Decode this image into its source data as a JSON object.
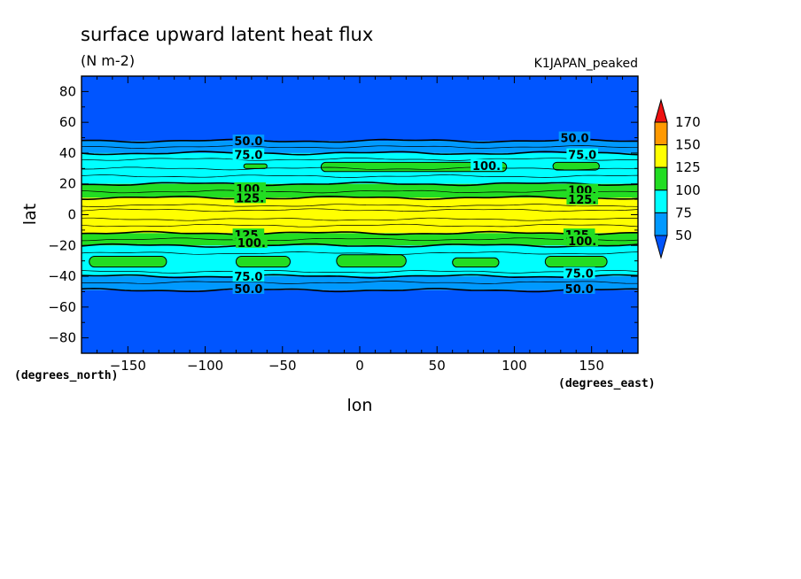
{
  "chart_data": {
    "type": "heatmap",
    "title": "surface upward latent heat flux",
    "units": "(N m-2)",
    "model": "K1JAPAN_peaked",
    "xlabel": "lon",
    "ylabel": "lat",
    "x_unit_label": "(degrees_east)",
    "y_unit_label": "(degrees_north)",
    "xlim": [
      -180,
      180
    ],
    "ylim": [
      -90,
      90
    ],
    "x_ticks": [
      -150,
      -100,
      -50,
      0,
      50,
      100,
      150
    ],
    "y_ticks": [
      80,
      60,
      40,
      20,
      0,
      -20,
      -40,
      -60,
      -80
    ],
    "levels": [
      50,
      75,
      100,
      125,
      150,
      170
    ],
    "colorbar": {
      "labels": [
        "170",
        "150",
        "125",
        "100",
        "75",
        "50"
      ],
      "colors": {
        "below_50": "#0055ff",
        "50_75": "#0099ff",
        "75_100": "#00ffff",
        "100_125": "#22dd22",
        "125_150": "#ffff00",
        "150_170": "#ff9900",
        "above_170": "#ee1111"
      },
      "extend": "both"
    },
    "zonal_bands": [
      {
        "lat": [
          48,
          90
        ],
        "level": "below_50"
      },
      {
        "lat": [
          40,
          48
        ],
        "level": "50_75"
      },
      {
        "lat": [
          20,
          40
        ],
        "level": "75_100"
      },
      {
        "lat": [
          11,
          20
        ],
        "level": "100_125"
      },
      {
        "lat": [
          -12,
          11
        ],
        "level": "125_150"
      },
      {
        "lat": [
          -20,
          -12
        ],
        "level": "100_125"
      },
      {
        "lat": [
          -40,
          -20
        ],
        "level": "75_100"
      },
      {
        "lat": [
          -49,
          -40
        ],
        "level": "50_75"
      },
      {
        "lat": [
          -90,
          -49
        ],
        "level": "below_50"
      }
    ],
    "patches_100_125": [
      {
        "lon": [
          -75,
          -60
        ],
        "lat": [
          30,
          33
        ]
      },
      {
        "lon": [
          -25,
          95
        ],
        "lat": [
          28,
          34
        ]
      },
      {
        "lon": [
          125,
          155
        ],
        "lat": [
          29,
          34
        ]
      },
      {
        "lon": [
          -175,
          -125
        ],
        "lat": [
          -34,
          -27
        ]
      },
      {
        "lon": [
          -80,
          -45
        ],
        "lat": [
          -34,
          -27
        ]
      },
      {
        "lon": [
          -15,
          30
        ],
        "lat": [
          -34,
          -26
        ]
      },
      {
        "lon": [
          60,
          90
        ],
        "lat": [
          -34,
          -28
        ]
      },
      {
        "lon": [
          120,
          160
        ],
        "lat": [
          -34,
          -27
        ]
      }
    ],
    "contour_labels": [
      {
        "text": "50.0",
        "lon": -72,
        "lat": 48
      },
      {
        "text": "50.0",
        "lon": 139,
        "lat": 50
      },
      {
        "text": "75.0",
        "lon": -72,
        "lat": 39
      },
      {
        "text": "75.0",
        "lon": 144,
        "lat": 39
      },
      {
        "text": "100.",
        "lon": 82,
        "lat": 32
      },
      {
        "text": "100.",
        "lon": -71,
        "lat": 17
      },
      {
        "text": "125.",
        "lon": -71,
        "lat": 11
      },
      {
        "text": "100.",
        "lon": 144,
        "lat": 16
      },
      {
        "text": "125.",
        "lon": 144,
        "lat": 10
      },
      {
        "text": "125.",
        "lon": -72,
        "lat": -13
      },
      {
        "text": "100.",
        "lon": -70,
        "lat": -18
      },
      {
        "text": "125.",
        "lon": 142,
        "lat": -13
      },
      {
        "text": "100.",
        "lon": 144,
        "lat": -17
      },
      {
        "text": "75.0",
        "lon": -72,
        "lat": -40
      },
      {
        "text": "75.0",
        "lon": 142,
        "lat": -38
      },
      {
        "text": "50.0",
        "lon": -72,
        "lat": -48
      },
      {
        "text": "50.0",
        "lon": 142,
        "lat": -48
      }
    ]
  }
}
